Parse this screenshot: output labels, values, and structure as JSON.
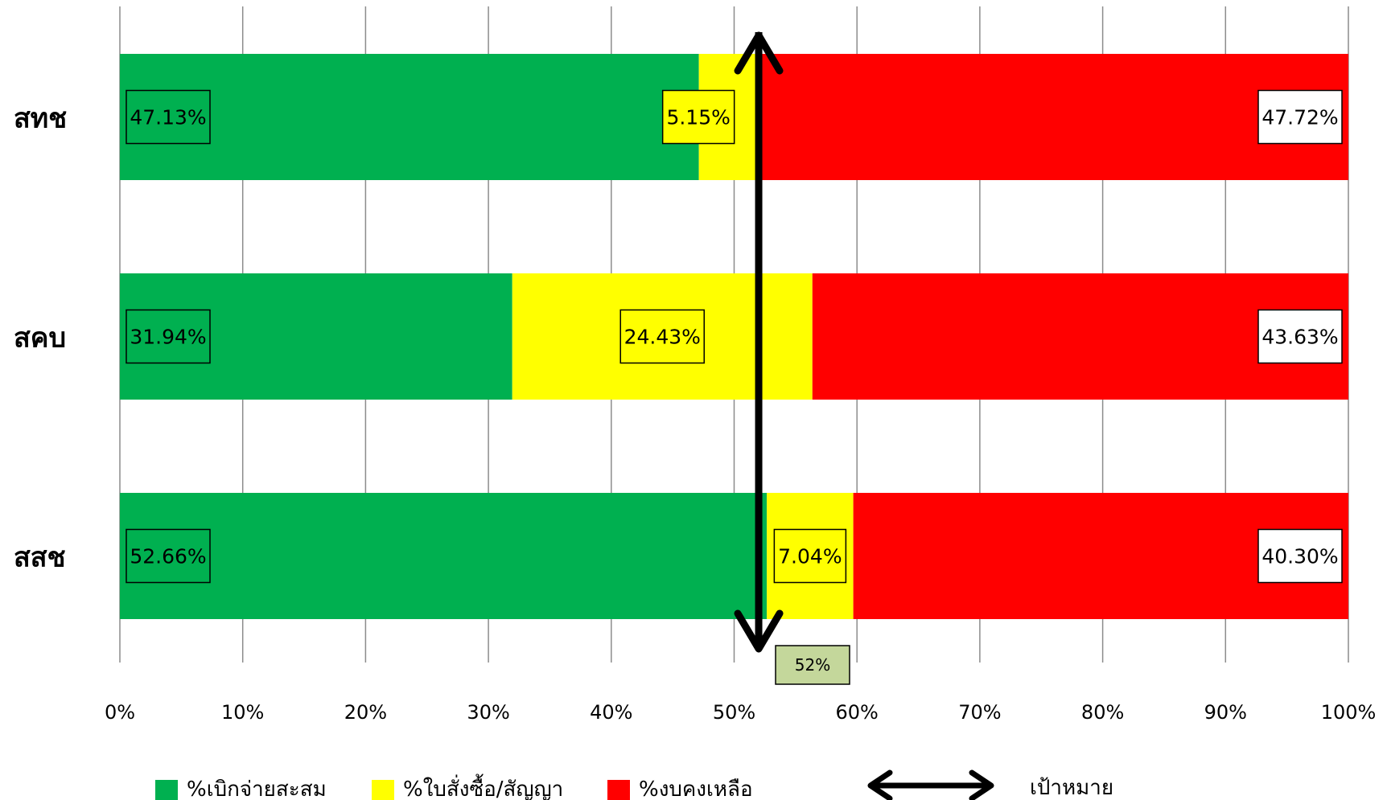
{
  "chart_data": {
    "type": "bar",
    "orientation": "horizontal",
    "stacked": true,
    "categories": [
      "สทช",
      "สคบ",
      "สสช"
    ],
    "series": [
      {
        "name": "%เบิกจ่ายสะสม",
        "color": "#00b050",
        "values": [
          47.13,
          31.94,
          52.66
        ],
        "labels": [
          "47.13%",
          "31.94%",
          "52.66%"
        ]
      },
      {
        "name": "%ใบสั่งซื้อ/สัญญา",
        "color": "#ffff00",
        "values": [
          5.15,
          24.43,
          7.04
        ],
        "labels": [
          "5.15%",
          "24.43%",
          "7.04%"
        ]
      },
      {
        "name": "%งบคงเหลือ",
        "color": "#ff0000",
        "values": [
          47.72,
          43.63,
          40.3
        ],
        "labels": [
          "47.72%",
          "43.63%",
          "40.30%"
        ]
      }
    ],
    "xlim": [
      0,
      100
    ],
    "x_ticks": [
      "0%",
      "10%",
      "20%",
      "30%",
      "40%",
      "50%",
      "60%",
      "70%",
      "80%",
      "90%",
      "100%"
    ],
    "grid": true,
    "target": {
      "name": "เป้าหมาย",
      "value": 52,
      "label": "52%",
      "label_color": "#c4d79b"
    },
    "legend_position": "bottom"
  }
}
